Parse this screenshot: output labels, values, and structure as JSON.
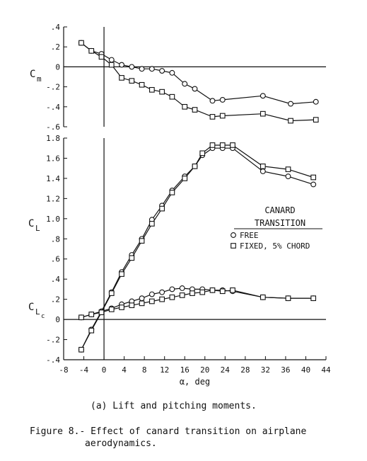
{
  "chart_data": [
    {
      "type": "line",
      "ylabel_main": "C",
      "ylabel_sub": "m",
      "ylim": [
        -0.6,
        0.4
      ],
      "yticks": [
        ".4",
        ".2",
        "0",
        "-.2",
        "-.4",
        "-.6"
      ],
      "xlim": [
        -8,
        44
      ],
      "grid": false,
      "series": [
        {
          "name": "FREE",
          "marker": "circle",
          "x": [
            -4.5,
            -2.5,
            -0.5,
            1.5,
            3.5,
            5.5,
            7.5,
            9.5,
            11.5,
            13.5,
            16,
            18,
            21.5,
            23.5,
            31.5,
            37,
            42
          ],
          "y": [
            0.24,
            0.16,
            0.13,
            0.07,
            0.02,
            0.0,
            -0.02,
            -0.02,
            -0.04,
            -0.06,
            -0.17,
            -0.22,
            -0.34,
            -0.33,
            -0.29,
            -0.37,
            -0.35
          ]
        },
        {
          "name": "FIXED, 5% CHORD",
          "marker": "square",
          "x": [
            -4.5,
            -2.5,
            -0.5,
            1.5,
            3.5,
            5.5,
            7.5,
            9.5,
            11.5,
            13.5,
            16,
            18,
            21.5,
            23.5,
            31.5,
            37,
            42
          ],
          "y": [
            0.24,
            0.16,
            0.1,
            0.02,
            -0.11,
            -0.14,
            -0.18,
            -0.23,
            -0.25,
            -0.3,
            -0.4,
            -0.43,
            -0.5,
            -0.49,
            -0.47,
            -0.54,
            -0.53
          ]
        }
      ]
    },
    {
      "type": "line",
      "ylabel_main": "C",
      "ylabel_sub": "L",
      "ylabel2_main": "C",
      "ylabel2_sub": "L",
      "ylabel2_subsub": "c",
      "xlabel": "α, deg",
      "xlim": [
        -8,
        44
      ],
      "ylim": [
        -0.4,
        1.8
      ],
      "xticks": [
        "-8",
        "-4",
        "0",
        "4",
        "8",
        "12",
        "16",
        "20",
        "24",
        "28",
        "32",
        "36",
        "40",
        "44"
      ],
      "yticks": [
        "1.8",
        "1.6",
        "1.4",
        "1.2",
        "1.0",
        ".8",
        ".6",
        ".4",
        ".2",
        "0",
        "-.2",
        "-.4"
      ],
      "grid": false,
      "legend": {
        "position": "right",
        "title_line1": "CANARD",
        "title_line2": "TRANSITION"
      },
      "series": [
        {
          "name": "FREE",
          "group": "CL",
          "marker": "circle",
          "x": [
            -4.5,
            -2.5,
            -0.5,
            1.5,
            3.5,
            5.5,
            7.5,
            9.5,
            11.5,
            13.5,
            16,
            18,
            19.5,
            21.5,
            23.5,
            25.5,
            31.5,
            36.5,
            41.5
          ],
          "y": [
            -0.3,
            -0.1,
            0.08,
            0.27,
            0.47,
            0.64,
            0.8,
            0.99,
            1.13,
            1.28,
            1.42,
            1.52,
            1.63,
            1.7,
            1.7,
            1.7,
            1.47,
            1.42,
            1.34
          ]
        },
        {
          "name": "FIXED, 5% CHORD",
          "group": "CL",
          "marker": "square",
          "x": [
            -4.5,
            -2.5,
            -0.5,
            1.5,
            3.5,
            5.5,
            7.5,
            9.5,
            11.5,
            13.5,
            16,
            18,
            19.5,
            21.5,
            23.5,
            25.5,
            31.5,
            36.5,
            41.5
          ],
          "y": [
            -0.3,
            -0.11,
            0.07,
            0.26,
            0.45,
            0.61,
            0.78,
            0.95,
            1.1,
            1.26,
            1.4,
            1.52,
            1.65,
            1.73,
            1.73,
            1.73,
            1.52,
            1.49,
            1.41
          ]
        },
        {
          "name": "FREE",
          "group": "CLc",
          "marker": "circle",
          "x": [
            -4.5,
            -2.5,
            -0.5,
            1.5,
            3.5,
            5.5,
            7.5,
            9.5,
            11.5,
            13.5,
            15.5,
            17.5,
            19.5,
            21.5,
            23.5,
            25.5,
            31.5,
            36.5,
            41.5
          ],
          "y": [
            0.02,
            0.05,
            0.08,
            0.11,
            0.15,
            0.18,
            0.21,
            0.25,
            0.27,
            0.3,
            0.31,
            0.3,
            0.3,
            0.29,
            0.29,
            0.28,
            0.22,
            0.21,
            0.21
          ]
        },
        {
          "name": "FIXED, 5% CHORD",
          "group": "CLc",
          "marker": "square",
          "x": [
            -4.5,
            -2.5,
            -0.5,
            1.5,
            3.5,
            5.5,
            7.5,
            9.5,
            11.5,
            13.5,
            15.5,
            17.5,
            19.5,
            21.5,
            23.5,
            25.5,
            31.5,
            36.5,
            41.5
          ],
          "y": [
            0.02,
            0.05,
            0.07,
            0.1,
            0.12,
            0.14,
            0.16,
            0.18,
            0.2,
            0.22,
            0.24,
            0.26,
            0.27,
            0.29,
            0.28,
            0.29,
            0.22,
            0.21,
            0.21
          ]
        }
      ]
    }
  ],
  "captions": {
    "subcaption": "(a) Lift and pitching moments.",
    "figure_line1": "Figure 8.- Effect of canard transition on airplane",
    "figure_line2": "aerodynamics."
  }
}
